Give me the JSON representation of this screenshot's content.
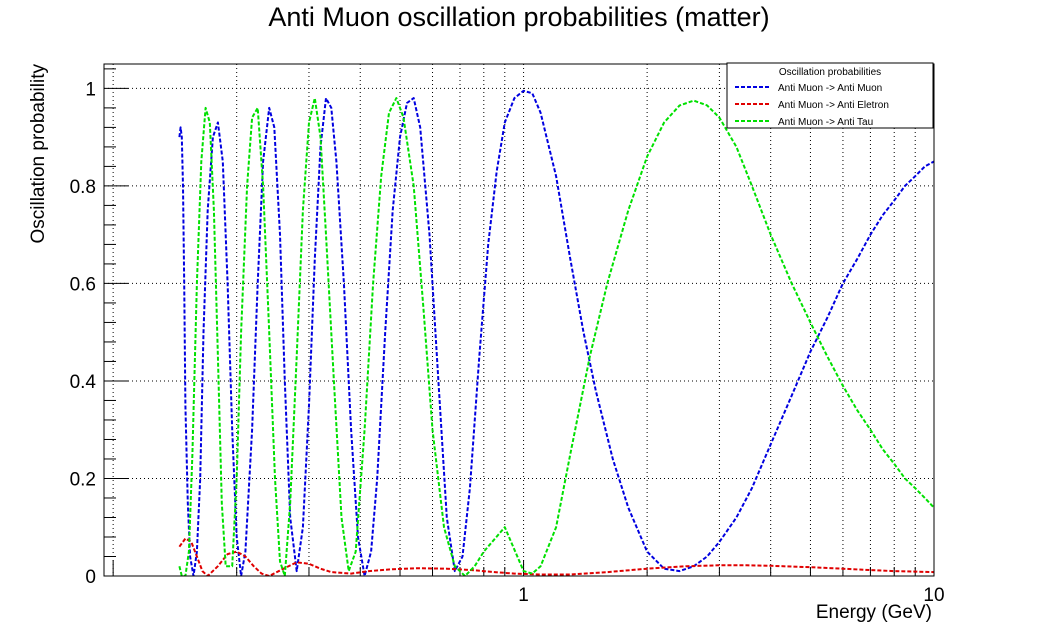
{
  "chart_data": {
    "type": "line",
    "title": "Anti Muon oscillation probabilities (matter)",
    "xlabel": "Energy (GeV)",
    "ylabel": "Oscillation probability",
    "x_scale": "log",
    "xlim": [
      0.095,
      10
    ],
    "ylim": [
      0,
      1.05
    ],
    "x_ticks": [
      {
        "value": 1,
        "label": "1"
      },
      {
        "value": 10,
        "label": "10"
      }
    ],
    "y_ticks": [
      {
        "value": 0,
        "label": "0"
      },
      {
        "value": 0.2,
        "label": "0.2"
      },
      {
        "value": 0.4,
        "label": "0.4"
      },
      {
        "value": 0.6,
        "label": "0.6"
      },
      {
        "value": 0.8,
        "label": "0.8"
      },
      {
        "value": 1,
        "label": "1"
      }
    ],
    "grid": true,
    "legend": {
      "title": "Oscillation probabilities",
      "placement": "top-right"
    },
    "series": [
      {
        "name": "Anti Muon -> Anti Muon",
        "color": "#0000e0",
        "style": "dashed",
        "points": [
          [
            0.145,
            0.9
          ],
          [
            0.146,
            0.92
          ],
          [
            0.147,
            0.9
          ],
          [
            0.148,
            0.8
          ],
          [
            0.149,
            0.6
          ],
          [
            0.15,
            0.35
          ],
          [
            0.152,
            0.15
          ],
          [
            0.154,
            0.04
          ],
          [
            0.157,
            0.0
          ],
          [
            0.16,
            0.05
          ],
          [
            0.163,
            0.2
          ],
          [
            0.166,
            0.5
          ],
          [
            0.17,
            0.75
          ],
          [
            0.175,
            0.9
          ],
          [
            0.18,
            0.93
          ],
          [
            0.185,
            0.85
          ],
          [
            0.19,
            0.6
          ],
          [
            0.195,
            0.3
          ],
          [
            0.2,
            0.08
          ],
          [
            0.205,
            0.0
          ],
          [
            0.21,
            0.05
          ],
          [
            0.218,
            0.3
          ],
          [
            0.225,
            0.6
          ],
          [
            0.232,
            0.85
          ],
          [
            0.24,
            0.96
          ],
          [
            0.247,
            0.92
          ],
          [
            0.255,
            0.7
          ],
          [
            0.262,
            0.4
          ],
          [
            0.27,
            0.12
          ],
          [
            0.28,
            0.01
          ],
          [
            0.29,
            0.1
          ],
          [
            0.3,
            0.35
          ],
          [
            0.31,
            0.65
          ],
          [
            0.32,
            0.88
          ],
          [
            0.33,
            0.98
          ],
          [
            0.34,
            0.96
          ],
          [
            0.35,
            0.85
          ],
          [
            0.365,
            0.6
          ],
          [
            0.38,
            0.3
          ],
          [
            0.395,
            0.08
          ],
          [
            0.41,
            0.0
          ],
          [
            0.425,
            0.05
          ],
          [
            0.44,
            0.2
          ],
          [
            0.46,
            0.5
          ],
          [
            0.48,
            0.75
          ],
          [
            0.5,
            0.9
          ],
          [
            0.52,
            0.97
          ],
          [
            0.54,
            0.98
          ],
          [
            0.56,
            0.92
          ],
          [
            0.59,
            0.7
          ],
          [
            0.62,
            0.4
          ],
          [
            0.65,
            0.12
          ],
          [
            0.68,
            0.01
          ],
          [
            0.71,
            0.04
          ],
          [
            0.74,
            0.18
          ],
          [
            0.78,
            0.45
          ],
          [
            0.82,
            0.68
          ],
          [
            0.86,
            0.83
          ],
          [
            0.9,
            0.93
          ],
          [
            0.95,
            0.98
          ],
          [
            1.0,
            0.995
          ],
          [
            1.05,
            0.99
          ],
          [
            1.1,
            0.95
          ],
          [
            1.2,
            0.82
          ],
          [
            1.3,
            0.65
          ],
          [
            1.4,
            0.5
          ],
          [
            1.5,
            0.38
          ],
          [
            1.65,
            0.24
          ],
          [
            1.8,
            0.14
          ],
          [
            2.0,
            0.05
          ],
          [
            2.2,
            0.015
          ],
          [
            2.4,
            0.01
          ],
          [
            2.6,
            0.02
          ],
          [
            2.8,
            0.04
          ],
          [
            3.0,
            0.07
          ],
          [
            3.3,
            0.12
          ],
          [
            3.6,
            0.18
          ],
          [
            4.0,
            0.27
          ],
          [
            4.5,
            0.37
          ],
          [
            5.0,
            0.46
          ],
          [
            5.5,
            0.53
          ],
          [
            6.0,
            0.6
          ],
          [
            6.5,
            0.65
          ],
          [
            7.0,
            0.7
          ],
          [
            7.5,
            0.74
          ],
          [
            8.0,
            0.77
          ],
          [
            8.5,
            0.8
          ],
          [
            9.0,
            0.82
          ],
          [
            9.5,
            0.84
          ],
          [
            10.0,
            0.85
          ]
        ]
      },
      {
        "name": "Anti Muon -> Anti Eletron",
        "color": "#e00000",
        "style": "dashed",
        "points": [
          [
            0.145,
            0.06
          ],
          [
            0.15,
            0.077
          ],
          [
            0.155,
            0.07
          ],
          [
            0.16,
            0.04
          ],
          [
            0.165,
            0.01
          ],
          [
            0.17,
            0.0
          ],
          [
            0.18,
            0.02
          ],
          [
            0.19,
            0.045
          ],
          [
            0.2,
            0.05
          ],
          [
            0.21,
            0.04
          ],
          [
            0.22,
            0.02
          ],
          [
            0.23,
            0.005
          ],
          [
            0.24,
            0.0
          ],
          [
            0.26,
            0.015
          ],
          [
            0.28,
            0.028
          ],
          [
            0.3,
            0.025
          ],
          [
            0.32,
            0.015
          ],
          [
            0.34,
            0.008
          ],
          [
            0.38,
            0.005
          ],
          [
            0.42,
            0.01
          ],
          [
            0.48,
            0.014
          ],
          [
            0.55,
            0.016
          ],
          [
            0.65,
            0.015
          ],
          [
            0.75,
            0.012
          ],
          [
            0.85,
            0.008
          ],
          [
            0.95,
            0.005
          ],
          [
            1.1,
            0.003
          ],
          [
            1.3,
            0.003
          ],
          [
            1.6,
            0.008
          ],
          [
            2.0,
            0.015
          ],
          [
            2.5,
            0.02
          ],
          [
            3.0,
            0.022
          ],
          [
            3.5,
            0.022
          ],
          [
            4.0,
            0.021
          ],
          [
            5.0,
            0.018
          ],
          [
            6.0,
            0.015
          ],
          [
            7.0,
            0.012
          ],
          [
            8.0,
            0.01
          ],
          [
            9.0,
            0.009
          ],
          [
            10.0,
            0.008
          ]
        ]
      },
      {
        "name": "Anti Muon -> Anti Tau",
        "color": "#00e000",
        "style": "dashed",
        "points": [
          [
            0.145,
            0.02
          ],
          [
            0.147,
            0.0
          ],
          [
            0.15,
            0.0
          ],
          [
            0.153,
            0.05
          ],
          [
            0.156,
            0.25
          ],
          [
            0.16,
            0.6
          ],
          [
            0.164,
            0.85
          ],
          [
            0.168,
            0.96
          ],
          [
            0.172,
            0.93
          ],
          [
            0.176,
            0.75
          ],
          [
            0.18,
            0.45
          ],
          [
            0.184,
            0.15
          ],
          [
            0.188,
            0.02
          ],
          [
            0.195,
            0.02
          ],
          [
            0.2,
            0.2
          ],
          [
            0.205,
            0.5
          ],
          [
            0.212,
            0.8
          ],
          [
            0.218,
            0.94
          ],
          [
            0.225,
            0.96
          ],
          [
            0.232,
            0.8
          ],
          [
            0.24,
            0.5
          ],
          [
            0.248,
            0.2
          ],
          [
            0.255,
            0.03
          ],
          [
            0.262,
            0.0
          ],
          [
            0.27,
            0.15
          ],
          [
            0.28,
            0.45
          ],
          [
            0.29,
            0.75
          ],
          [
            0.3,
            0.93
          ],
          [
            0.31,
            0.98
          ],
          [
            0.32,
            0.9
          ],
          [
            0.33,
            0.7
          ],
          [
            0.345,
            0.4
          ],
          [
            0.36,
            0.12
          ],
          [
            0.375,
            0.01
          ],
          [
            0.39,
            0.05
          ],
          [
            0.41,
            0.3
          ],
          [
            0.43,
            0.6
          ],
          [
            0.45,
            0.82
          ],
          [
            0.47,
            0.95
          ],
          [
            0.49,
            0.98
          ],
          [
            0.51,
            0.94
          ],
          [
            0.54,
            0.8
          ],
          [
            0.57,
            0.55
          ],
          [
            0.6,
            0.3
          ],
          [
            0.64,
            0.1
          ],
          [
            0.68,
            0.02
          ],
          [
            0.72,
            0.0
          ],
          [
            0.76,
            0.02
          ],
          [
            0.8,
            0.05
          ],
          [
            0.9,
            0.1
          ],
          [
            1.0,
            0.01
          ],
          [
            1.05,
            0.005
          ],
          [
            1.1,
            0.02
          ],
          [
            1.2,
            0.1
          ],
          [
            1.3,
            0.25
          ],
          [
            1.45,
            0.45
          ],
          [
            1.6,
            0.6
          ],
          [
            1.8,
            0.75
          ],
          [
            2.0,
            0.86
          ],
          [
            2.2,
            0.93
          ],
          [
            2.4,
            0.965
          ],
          [
            2.6,
            0.975
          ],
          [
            2.8,
            0.965
          ],
          [
            3.0,
            0.94
          ],
          [
            3.3,
            0.88
          ],
          [
            3.6,
            0.8
          ],
          [
            4.0,
            0.7
          ],
          [
            4.5,
            0.6
          ],
          [
            5.0,
            0.52
          ],
          [
            5.5,
            0.45
          ],
          [
            6.0,
            0.39
          ],
          [
            6.5,
            0.34
          ],
          [
            7.0,
            0.3
          ],
          [
            7.5,
            0.26
          ],
          [
            8.0,
            0.23
          ],
          [
            8.5,
            0.2
          ],
          [
            9.0,
            0.18
          ],
          [
            9.5,
            0.16
          ],
          [
            10.0,
            0.14
          ]
        ]
      }
    ]
  }
}
